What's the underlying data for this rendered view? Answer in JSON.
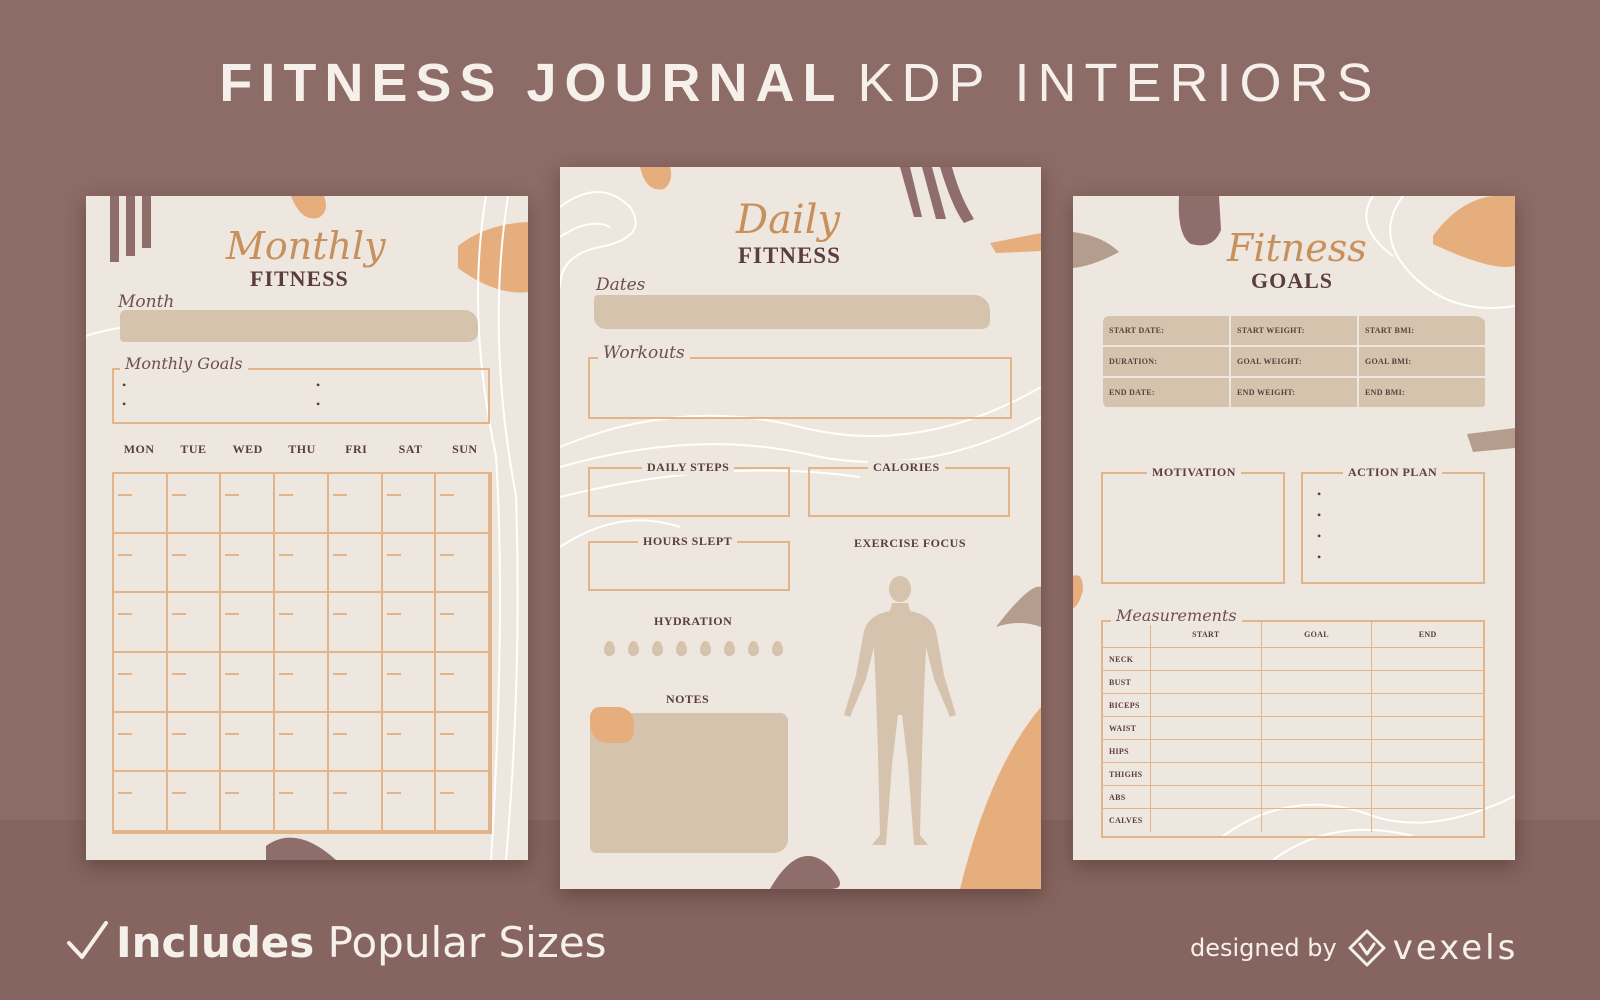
{
  "header": {
    "title_bold": "FITNESS JOURNAL",
    "title_light": "KDP INTERIORS"
  },
  "colors": {
    "background": "#8d6b66",
    "paper": "#ede7df",
    "accent_orange": "#e2b48a",
    "swatch_beige": "#d6c3ad",
    "text_brown": "#5b3d3d"
  },
  "monthly": {
    "script_title": "Monthly",
    "caps_title": "FITNESS",
    "month_label": "Month",
    "goals_label": "Monthly Goals",
    "goal_bullets": [
      "•",
      "•",
      "•",
      "•"
    ],
    "weekdays": [
      "MON",
      "TUE",
      "WED",
      "THU",
      "FRI",
      "SAT",
      "SUN"
    ]
  },
  "daily": {
    "script_title": "Daily",
    "caps_title": "FITNESS",
    "dates_label": "Dates",
    "workouts_label": "Workouts",
    "daily_steps_label": "DAILY STEPS",
    "calories_label": "CALORIES",
    "hours_slept_label": "HOURS SLEPT",
    "exercise_focus_label": "EXERCISE FOCUS",
    "hydration_label": "HYDRATION",
    "hydration_drops": 8,
    "notes_label": "NOTES",
    "body_figure_icon": "human-body-figure"
  },
  "goals": {
    "script_title": "Fitness",
    "caps_title": "GOALS",
    "table": [
      [
        "START DATE:",
        "START WEIGHT:",
        "START BMI:"
      ],
      [
        "DURATION:",
        "GOAL WEIGHT:",
        "GOAL BMI:"
      ],
      [
        "END DATE:",
        "END WEIGHT:",
        "END BMI:"
      ]
    ],
    "motivation_label": "MOTIVATION",
    "action_plan_label": "ACTION PLAN",
    "action_bullets": [
      "•",
      "•",
      "•",
      "•"
    ],
    "measurements_label": "Measurements",
    "measure_columns": [
      "START",
      "GOAL",
      "END"
    ],
    "measure_rows": [
      "NECK",
      "BUST",
      "BICEPS",
      "WAIST",
      "HIPS",
      "THIGHS",
      "ABS",
      "CALVES"
    ]
  },
  "footer": {
    "check_icon": "checkmark-icon",
    "includes_bold": "Includes",
    "includes_rest": "Popular Sizes",
    "designed_by": "designed by",
    "brand_icon": "vexels-logo-icon",
    "brand_name": "vexels"
  }
}
